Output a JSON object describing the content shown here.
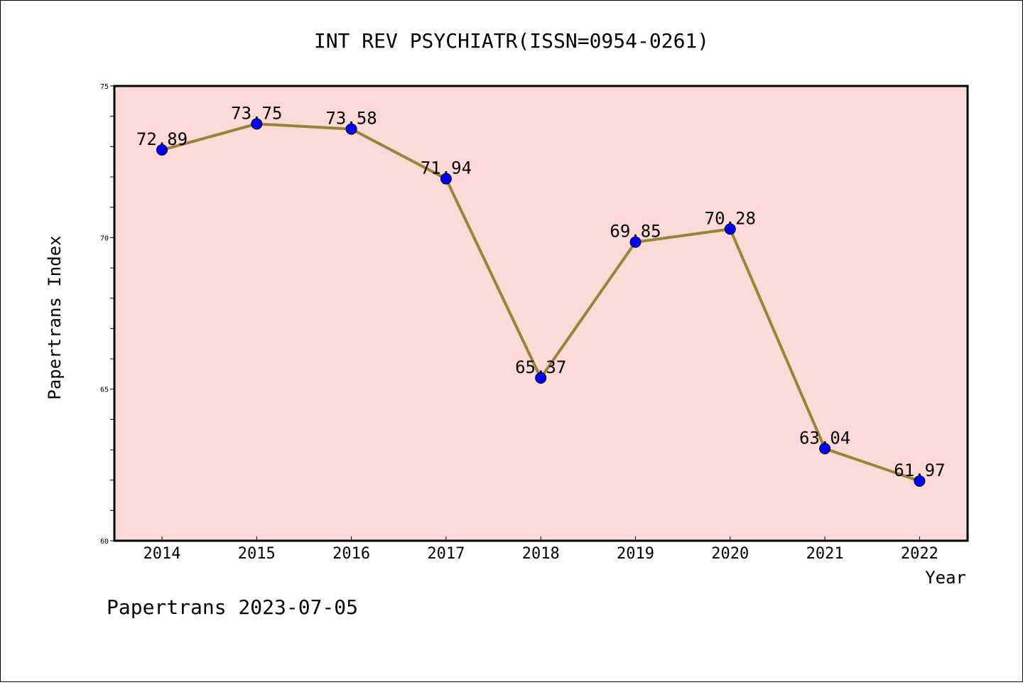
{
  "chart_data": {
    "type": "line",
    "title": "INT REV PSYCHIATR(ISSN=0954-0261)",
    "xlabel": "Year",
    "ylabel": "Papertrans Index",
    "categories": [
      "2014",
      "2015",
      "2016",
      "2017",
      "2018",
      "2019",
      "2020",
      "2021",
      "2022"
    ],
    "series": [
      {
        "values": [
          72.89,
          73.75,
          73.58,
          71.94,
          65.37,
          69.85,
          70.28,
          63.04,
          61.97
        ],
        "labels": [
          "72.89",
          "73.75",
          "73.58",
          "71.94",
          "65.37",
          "69.85",
          "70.28",
          "63.04",
          "61.97"
        ]
      }
    ],
    "ylim": [
      60,
      75
    ],
    "yticks": [
      60,
      65,
      70,
      75
    ],
    "ytick_labels": [
      "60",
      "65",
      "70",
      "75"
    ],
    "grid": false,
    "colors": {
      "plot_background": "#fddad7",
      "line": "#9b8339",
      "marker": "#0000ff",
      "axes": "#000000"
    }
  },
  "footer": "Papertrans 2023-07-05"
}
